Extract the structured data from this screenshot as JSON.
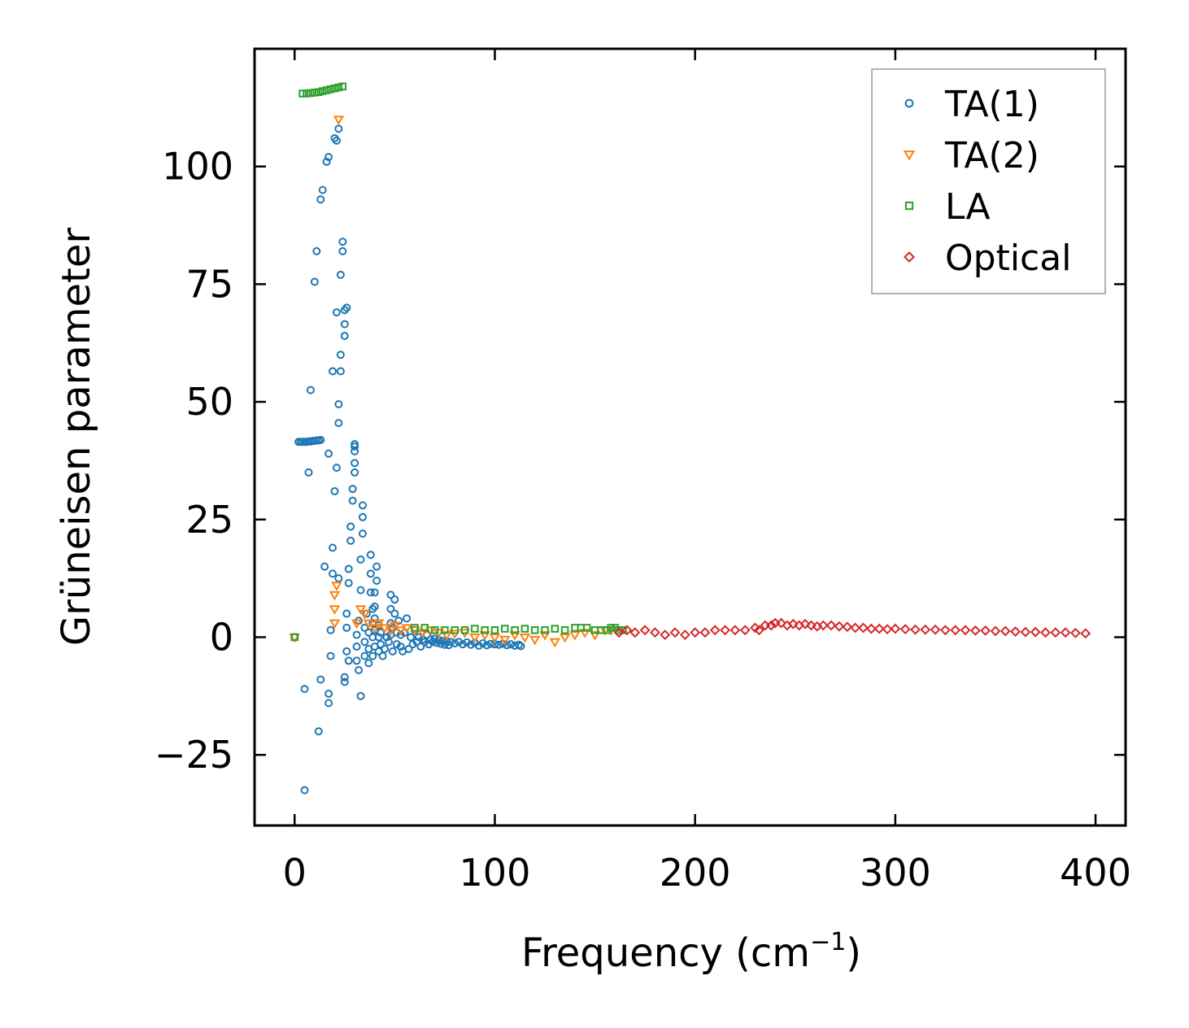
{
  "chart_data": {
    "type": "scatter",
    "xlabel": "Frequency (cm",
    "xlabel_sup": "−1",
    "xlabel_end": ")",
    "ylabel": "Grüneisen parameter",
    "xlim": [
      -20,
      415
    ],
    "ylim": [
      -40,
      125
    ],
    "xticks": [
      0,
      100,
      200,
      300,
      400
    ],
    "yticks": [
      -25,
      0,
      25,
      50,
      75,
      100
    ],
    "xtick_labels": [
      "0",
      "100",
      "200",
      "300",
      "400"
    ],
    "ytick_labels": [
      "−25",
      "0",
      "25",
      "50",
      "75",
      "100"
    ],
    "legend_position": "top-right",
    "series": [
      {
        "name": "TA(1)",
        "marker": "circle",
        "color": "#1f77b4",
        "points": [
          [
            0,
            0
          ],
          [
            2,
            41.5
          ],
          [
            3,
            41.5
          ],
          [
            4,
            41.5
          ],
          [
            5,
            41.5
          ],
          [
            6,
            41.5
          ],
          [
            7,
            41.6
          ],
          [
            8,
            41.6
          ],
          [
            9,
            41.7
          ],
          [
            10,
            41.7
          ],
          [
            11,
            41.8
          ],
          [
            12,
            41.8
          ],
          [
            13,
            41.9
          ],
          [
            5,
            -32.5
          ],
          [
            5,
            -11
          ],
          [
            7,
            35
          ],
          [
            8,
            52.5
          ],
          [
            10,
            75.5
          ],
          [
            11,
            82
          ],
          [
            12,
            -20
          ],
          [
            13,
            -9
          ],
          [
            13,
            93
          ],
          [
            14,
            95
          ],
          [
            15,
            15
          ],
          [
            16,
            101
          ],
          [
            17,
            102
          ],
          [
            17,
            -12
          ],
          [
            17,
            -14
          ],
          [
            17,
            39
          ],
          [
            18,
            -4
          ],
          [
            18,
            1.5
          ],
          [
            19,
            13.5
          ],
          [
            19,
            19
          ],
          [
            19,
            56.5
          ],
          [
            20,
            31
          ],
          [
            20,
            106
          ],
          [
            21,
            105.5
          ],
          [
            21,
            36
          ],
          [
            21,
            69
          ],
          [
            22,
            108
          ],
          [
            22,
            12.5
          ],
          [
            22,
            45.5
          ],
          [
            22,
            49.5
          ],
          [
            23,
            77
          ],
          [
            23,
            56.5
          ],
          [
            23,
            60
          ],
          [
            24,
            82
          ],
          [
            24,
            84
          ],
          [
            25,
            64
          ],
          [
            25,
            66.5
          ],
          [
            25,
            69.5
          ],
          [
            25,
            -8.5
          ],
          [
            25,
            -9.5
          ],
          [
            26,
            -3
          ],
          [
            26,
            2
          ],
          [
            26,
            5
          ],
          [
            26,
            70
          ],
          [
            27,
            -5
          ],
          [
            27,
            11.5
          ],
          [
            27,
            14.5
          ],
          [
            28,
            20.5
          ],
          [
            28,
            23.5
          ],
          [
            29,
            31.5
          ],
          [
            29,
            29
          ],
          [
            30,
            35
          ],
          [
            30,
            37
          ],
          [
            30,
            39.5
          ],
          [
            30,
            40.5
          ],
          [
            30,
            41
          ],
          [
            31,
            0.5
          ],
          [
            31,
            -2
          ],
          [
            31,
            -5
          ],
          [
            32,
            3.5
          ],
          [
            32,
            -7
          ],
          [
            33,
            -12.5
          ],
          [
            33,
            10
          ],
          [
            33,
            16.5
          ],
          [
            34,
            22
          ],
          [
            34,
            25.5
          ],
          [
            34,
            28
          ],
          [
            35,
            -4
          ],
          [
            35,
            -1
          ],
          [
            35,
            2
          ],
          [
            36,
            5
          ],
          [
            37,
            -5.5
          ],
          [
            37,
            -2.5
          ],
          [
            37,
            1
          ],
          [
            38,
            13.5
          ],
          [
            38,
            17.5
          ],
          [
            38,
            9.5
          ],
          [
            39,
            -4
          ],
          [
            39,
            0
          ],
          [
            39,
            3
          ],
          [
            39,
            6
          ],
          [
            40,
            -2
          ],
          [
            40,
            1.5
          ],
          [
            40,
            4
          ],
          [
            40,
            6.5
          ],
          [
            40,
            9.5
          ],
          [
            41,
            12
          ],
          [
            41,
            15
          ],
          [
            42,
            -3
          ],
          [
            42,
            0
          ],
          [
            42,
            2.5
          ],
          [
            43,
            -1.5
          ],
          [
            43,
            1
          ],
          [
            44,
            -4
          ],
          [
            45,
            -2.5
          ],
          [
            46,
            0
          ],
          [
            47,
            -1
          ],
          [
            48,
            0.5
          ],
          [
            48,
            3
          ],
          [
            48,
            6
          ],
          [
            48,
            9
          ],
          [
            49,
            -3
          ],
          [
            49,
            2
          ],
          [
            50,
            5
          ],
          [
            50,
            8
          ],
          [
            51,
            -1.5
          ],
          [
            51,
            1
          ],
          [
            52,
            3.5
          ],
          [
            53,
            -2
          ],
          [
            53,
            0.5
          ],
          [
            54,
            -3
          ],
          [
            55,
            1
          ],
          [
            56,
            4
          ],
          [
            57,
            -2.5
          ],
          [
            58,
            0
          ],
          [
            59,
            -1.5
          ],
          [
            60,
            1.5
          ],
          [
            61,
            -1
          ],
          [
            62,
            0
          ],
          [
            63,
            -2
          ],
          [
            64,
            -0.5
          ],
          [
            65,
            -1
          ],
          [
            66,
            0.5
          ],
          [
            67,
            -1.5
          ],
          [
            68,
            -0.5
          ],
          [
            69,
            -1
          ],
          [
            70,
            -0.3
          ],
          [
            71,
            -1.2
          ],
          [
            72,
            -0.6
          ],
          [
            73,
            -1.4
          ],
          [
            74,
            -0.8
          ],
          [
            75,
            -1.6
          ],
          [
            76,
            -0.9
          ],
          [
            77,
            -1.7
          ],
          [
            78,
            -1
          ],
          [
            80,
            -1.3
          ],
          [
            82,
            -1
          ],
          [
            84,
            -1.5
          ],
          [
            86,
            -1.1
          ],
          [
            88,
            -1.6
          ],
          [
            90,
            -1.2
          ],
          [
            92,
            -1.8
          ],
          [
            94,
            -1.3
          ],
          [
            96,
            -1.7
          ],
          [
            98,
            -1.4
          ],
          [
            100,
            -1.5
          ],
          [
            102,
            -1.6
          ],
          [
            104,
            -1.4
          ],
          [
            106,
            -1.7
          ],
          [
            108,
            -1.5
          ],
          [
            110,
            -1.8
          ],
          [
            112,
            -1.6
          ],
          [
            113,
            -1.9
          ]
        ]
      },
      {
        "name": "TA(2)",
        "marker": "triangle-down",
        "color": "#ff7f0e",
        "points": [
          [
            0,
            0
          ],
          [
            20,
            3
          ],
          [
            20,
            6
          ],
          [
            20,
            9
          ],
          [
            21,
            11
          ],
          [
            22,
            110
          ],
          [
            31,
            3
          ],
          [
            33,
            6
          ],
          [
            35,
            5
          ],
          [
            37,
            3
          ],
          [
            40,
            2
          ],
          [
            42,
            3
          ],
          [
            45,
            2
          ],
          [
            48,
            1.5
          ],
          [
            50,
            2.5
          ],
          [
            53,
            1.5
          ],
          [
            56,
            2
          ],
          [
            60,
            1.5
          ],
          [
            64,
            1
          ],
          [
            68,
            1.5
          ],
          [
            72,
            1
          ],
          [
            76,
            0.5
          ],
          [
            80,
            0.8
          ],
          [
            85,
            1
          ],
          [
            90,
            0
          ],
          [
            95,
            0.5
          ],
          [
            100,
            0
          ],
          [
            105,
            -0.5
          ],
          [
            110,
            0.5
          ],
          [
            115,
            0
          ],
          [
            120,
            -0.5
          ],
          [
            125,
            0.5
          ],
          [
            130,
            -1
          ],
          [
            135,
            0
          ],
          [
            140,
            0.5
          ],
          [
            145,
            1
          ],
          [
            150,
            0.5
          ],
          [
            155,
            1.5
          ],
          [
            158,
            1.5
          ]
        ]
      },
      {
        "name": "LA",
        "marker": "square",
        "color": "#2ca02c",
        "points": [
          [
            0,
            0
          ],
          [
            4,
            115.5
          ],
          [
            6,
            115.5
          ],
          [
            8,
            115.6
          ],
          [
            10,
            115.7
          ],
          [
            12,
            115.8
          ],
          [
            14,
            116
          ],
          [
            16,
            116.2
          ],
          [
            18,
            116.4
          ],
          [
            20,
            116.6
          ],
          [
            22,
            116.8
          ],
          [
            24,
            117
          ],
          [
            60,
            2
          ],
          [
            65,
            2
          ],
          [
            70,
            1.5
          ],
          [
            75,
            1.5
          ],
          [
            80,
            1.5
          ],
          [
            85,
            1.5
          ],
          [
            90,
            1.8
          ],
          [
            95,
            1.5
          ],
          [
            100,
            1.5
          ],
          [
            105,
            1.8
          ],
          [
            110,
            1.5
          ],
          [
            115,
            1.8
          ],
          [
            120,
            1.5
          ],
          [
            125,
            1.5
          ],
          [
            130,
            1.8
          ],
          [
            135,
            1.5
          ],
          [
            140,
            2
          ],
          [
            143,
            2
          ],
          [
            146,
            2
          ],
          [
            150,
            1.5
          ],
          [
            153,
            1.5
          ],
          [
            156,
            1.5
          ],
          [
            158,
            2
          ],
          [
            160,
            2
          ],
          [
            162,
            1.5
          ],
          [
            164,
            1.5
          ]
        ]
      },
      {
        "name": "Optical",
        "marker": "diamond",
        "color": "#d62728",
        "points": [
          [
            162,
            1
          ],
          [
            166,
            1.5
          ],
          [
            170,
            1
          ],
          [
            175,
            1.5
          ],
          [
            180,
            1
          ],
          [
            185,
            0.5
          ],
          [
            190,
            1
          ],
          [
            195,
            0.5
          ],
          [
            200,
            1
          ],
          [
            205,
            1
          ],
          [
            210,
            1.5
          ],
          [
            215,
            1.5
          ],
          [
            220,
            1.5
          ],
          [
            225,
            1.5
          ],
          [
            230,
            2
          ],
          [
            232,
            1.5
          ],
          [
            235,
            2.5
          ],
          [
            238,
            2.5
          ],
          [
            240,
            3
          ],
          [
            243,
            3
          ],
          [
            246,
            2.5
          ],
          [
            249,
            2.8
          ],
          [
            252,
            2.5
          ],
          [
            255,
            2.8
          ],
          [
            258,
            2.5
          ],
          [
            261,
            2.3
          ],
          [
            264,
            2.5
          ],
          [
            268,
            2.5
          ],
          [
            272,
            2.3
          ],
          [
            276,
            2.2
          ],
          [
            280,
            2
          ],
          [
            284,
            2
          ],
          [
            288,
            1.8
          ],
          [
            292,
            1.8
          ],
          [
            296,
            1.7
          ],
          [
            300,
            1.8
          ],
          [
            305,
            1.7
          ],
          [
            310,
            1.6
          ],
          [
            315,
            1.6
          ],
          [
            320,
            1.6
          ],
          [
            325,
            1.5
          ],
          [
            330,
            1.5
          ],
          [
            335,
            1.5
          ],
          [
            340,
            1.4
          ],
          [
            345,
            1.4
          ],
          [
            350,
            1.3
          ],
          [
            355,
            1.3
          ],
          [
            360,
            1.2
          ],
          [
            365,
            1.1
          ],
          [
            370,
            1.1
          ],
          [
            375,
            1
          ],
          [
            380,
            1
          ],
          [
            385,
            1
          ],
          [
            390,
            0.9
          ],
          [
            395,
            0.8
          ]
        ]
      }
    ]
  }
}
